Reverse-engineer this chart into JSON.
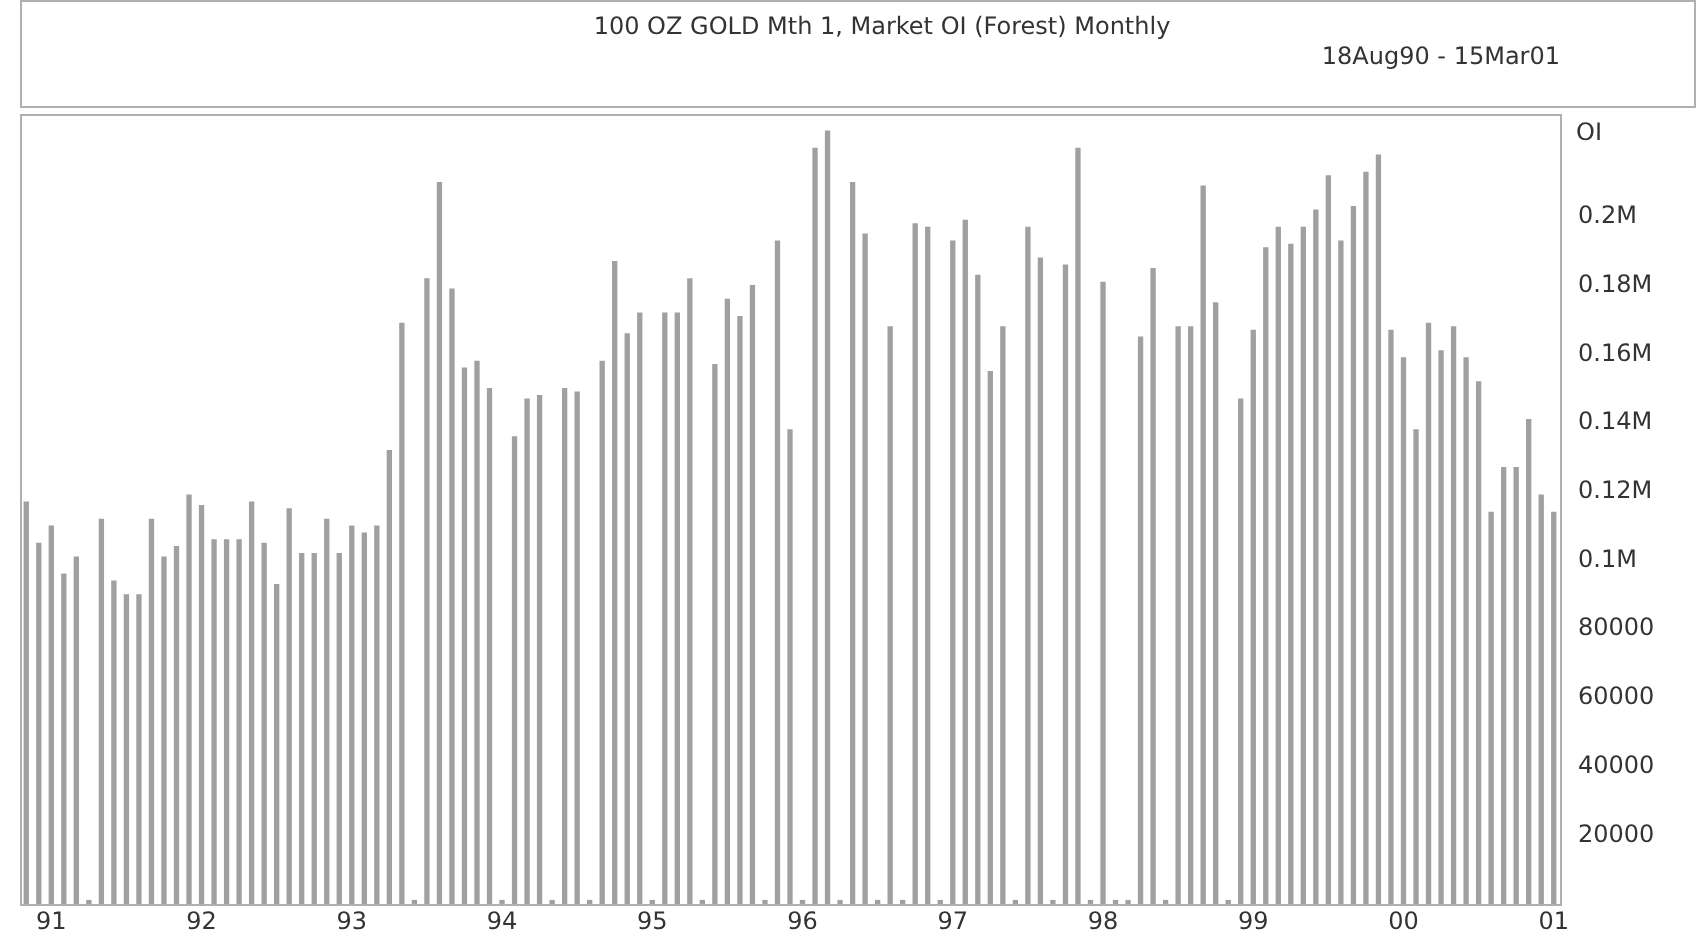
{
  "chart_data": {
    "type": "bar",
    "title": "100 OZ GOLD Mth 1, Market OI (Forest) Monthly",
    "subtitle": "18Aug90 - 15Mar01",
    "ylabel": "OI",
    "categories": [
      null,
      null,
      "91",
      null,
      null,
      null,
      null,
      null,
      null,
      null,
      null,
      null,
      null,
      null,
      "92",
      null,
      null,
      null,
      null,
      null,
      null,
      null,
      null,
      null,
      null,
      null,
      "93",
      null,
      null,
      null,
      null,
      null,
      null,
      null,
      null,
      null,
      null,
      null,
      "94",
      null,
      null,
      null,
      null,
      null,
      null,
      null,
      null,
      null,
      null,
      null,
      "95",
      null,
      null,
      null,
      null,
      null,
      null,
      null,
      null,
      null,
      null,
      null,
      "96",
      null,
      null,
      null,
      null,
      null,
      null,
      null,
      null,
      null,
      null,
      null,
      "97",
      null,
      null,
      null,
      null,
      null,
      null,
      null,
      null,
      null,
      null,
      null,
      "98",
      null,
      null,
      null,
      null,
      null,
      null,
      null,
      null,
      null,
      null,
      null,
      "99",
      null,
      null,
      null,
      null,
      null,
      null,
      null,
      null,
      null,
      null,
      null,
      "00",
      null,
      null,
      null,
      null,
      null,
      null,
      null,
      null,
      null,
      null,
      null,
      "01"
    ],
    "values": [
      117000,
      105000,
      110000,
      96000,
      101000,
      1000,
      112000,
      94000,
      90000,
      90000,
      112000,
      101000,
      104000,
      119000,
      116000,
      106000,
      106000,
      106000,
      117000,
      105000,
      93000,
      115000,
      102000,
      102000,
      112000,
      102000,
      110000,
      108000,
      110000,
      132000,
      169000,
      1000,
      182000,
      210000,
      179000,
      156000,
      158000,
      150000,
      1000,
      136000,
      147000,
      148000,
      1000,
      150000,
      149000,
      1000,
      158000,
      187000,
      166000,
      172000,
      1000,
      172000,
      172000,
      182000,
      1000,
      157000,
      176000,
      171000,
      180000,
      1000,
      193000,
      138000,
      1000,
      220000,
      225000,
      1000,
      210000,
      195000,
      1000,
      168000,
      1000,
      198000,
      197000,
      1000,
      193000,
      199000,
      183000,
      155000,
      168000,
      1000,
      197000,
      188000,
      1000,
      186000,
      220000,
      1000,
      181000,
      1000,
      1000,
      165000,
      185000,
      1000,
      168000,
      168000,
      209000,
      175000,
      1000,
      147000,
      167000,
      191000,
      197000,
      192000,
      197000,
      202000,
      212000,
      193000,
      203000,
      213000,
      218000,
      167000,
      159000,
      138000,
      169000,
      161000,
      168000,
      159000,
      152000,
      114000,
      127000,
      127000,
      141000,
      119000,
      114000
    ],
    "color": "#a0a0a0",
    "ylim": [
      0,
      230000
    ],
    "yticks": [
      20000,
      40000,
      60000,
      80000,
      {
        "value": 100000,
        "label": "0.1M"
      },
      {
        "value": 120000,
        "label": "0.12M"
      },
      {
        "value": 140000,
        "label": "0.14M"
      },
      {
        "value": 160000,
        "label": "0.16M"
      },
      {
        "value": 180000,
        "label": "0.18M"
      },
      {
        "value": 200000,
        "label": "0.2M"
      }
    ]
  }
}
